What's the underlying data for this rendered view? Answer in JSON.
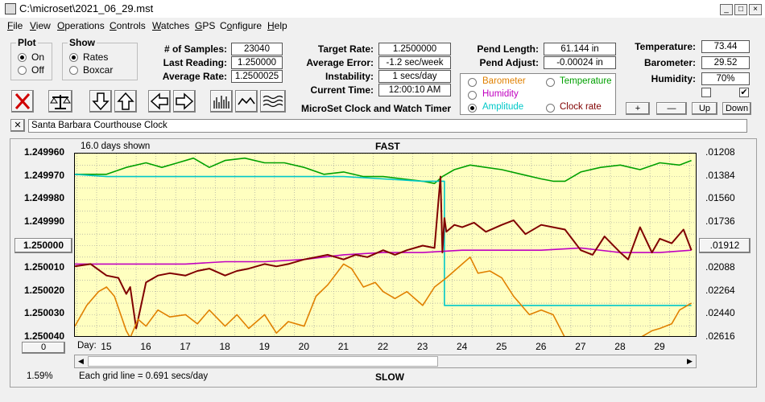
{
  "window": {
    "title": "C:\\microset\\2021_06_29.mst"
  },
  "menu": [
    "File",
    "View",
    "Operations",
    "Controls",
    "Watches",
    "GPS",
    "Configure",
    "Help"
  ],
  "menu_underline": [
    "F",
    "V",
    "O",
    "C",
    "W",
    "G",
    "o",
    "H"
  ],
  "plot_group": {
    "title": "Plot",
    "on": "On",
    "off": "Off"
  },
  "show_group": {
    "title": "Show",
    "rates": "Rates",
    "boxcar": "Boxcar"
  },
  "stats": {
    "samples_label": "# of Samples:",
    "samples": "23040",
    "last_label": "Last Reading:",
    "last": "1.250000",
    "avg_rate_label": "Average Rate:",
    "avg_rate": "1.2500025",
    "target_label": "Target Rate:",
    "target": "1.2500000",
    "avg_err_label": "Average Error:",
    "avg_err": "-1.2 sec/week",
    "instab_label": "Instability:",
    "instab": "1 secs/day",
    "time_label": "Current Time:",
    "time": "12:00:10 AM",
    "pend_len_label": "Pend Length:",
    "pend_len": "61.144 in",
    "pend_adj_label": "Pend Adjust:",
    "pend_adj": "-0.00024 in",
    "temp_label": "Temperature:",
    "temp": "73.44",
    "baro_label": "Barometer:",
    "baro": "29.52",
    "hum_label": "Humidity:",
    "hum": "70%"
  },
  "app_name": "MicroSet Clock and Watch Timer",
  "legend": {
    "barometer": "Barometer",
    "temperature": "Temperature",
    "humidity": "Humidity",
    "amplitude": "Amplitude",
    "clock_rate": "Clock rate",
    "colors": {
      "barometer": "#e08000",
      "temperature": "#00a000",
      "humidity": "#c000c0",
      "amplitude": "#00c8c8",
      "clock_rate": "#800000"
    }
  },
  "env_buttons": {
    "plus": "+",
    "minus": "—",
    "up": "Up",
    "down": "Down"
  },
  "env_checks": {
    "left": "",
    "right": "✔"
  },
  "clock_name": "Santa Barbara Courthouse Clock",
  "chart_header": {
    "days_shown": "16.0 days shown",
    "fast": "FAST",
    "slow": "SLOW",
    "grid_note": "Each grid line = 0.691 secs/day",
    "percent": "1.59%",
    "day_label": "Day:",
    "left_btn": "1.250000",
    "right_btn": ".01912",
    "bottom_btn": "0"
  },
  "chart_data": {
    "type": "line",
    "x": {
      "label": "Day:",
      "range": [
        14.2,
        29.95
      ],
      "ticks": [
        15,
        16,
        17,
        18,
        19,
        20,
        21,
        22,
        23,
        24,
        25,
        26,
        27,
        28,
        29
      ]
    },
    "y_left": {
      "ticks": [
        "1.249960",
        "1.249970",
        "1.249980",
        "1.249990",
        "1.250000",
        "1.250010",
        "1.250020",
        "1.250030",
        "1.250040"
      ],
      "range": [
        1.24996,
        1.25004
      ],
      "inverted": true
    },
    "y_right": {
      "ticks": [
        ".01208",
        ".01384",
        ".01560",
        ".01736",
        ".01912",
        ".02088",
        ".02264",
        ".02440",
        ".02616"
      ]
    },
    "grid": true,
    "series": [
      {
        "name": "Temperature",
        "color": "#00a000",
        "x": [
          14.2,
          14.6,
          15.0,
          15.5,
          16.0,
          16.4,
          16.8,
          17.2,
          17.6,
          18.0,
          18.5,
          19.0,
          19.5,
          20.0,
          20.5,
          21.0,
          21.5,
          22.0,
          22.5,
          23.0,
          23.3,
          23.5,
          23.8,
          24.2,
          24.6,
          25.0,
          25.5,
          26.0,
          26.3,
          26.6,
          27.0,
          27.5,
          28.0,
          28.5,
          29.0,
          29.5,
          29.8
        ],
        "y": [
          1.249969,
          1.249969,
          1.249969,
          1.249966,
          1.249964,
          1.249966,
          1.249964,
          1.249962,
          1.249966,
          1.249963,
          1.249962,
          1.249964,
          1.249964,
          1.249966,
          1.249969,
          1.249968,
          1.24997,
          1.24997,
          1.249971,
          1.249972,
          1.249973,
          1.24997,
          1.249967,
          1.249965,
          1.249966,
          1.249967,
          1.249969,
          1.249971,
          1.249972,
          1.249972,
          1.249968,
          1.249966,
          1.249965,
          1.249967,
          1.249964,
          1.249965,
          1.249963
        ]
      },
      {
        "name": "Amplitude",
        "color": "#00c8c8",
        "x": [
          14.2,
          15.0,
          16.0,
          17.0,
          18.0,
          19.0,
          20.0,
          21.0,
          22.0,
          23.0,
          23.3,
          23.55,
          23.55,
          24.5,
          25.5,
          26.5,
          27.5,
          28.5,
          29.5,
          29.8
        ],
        "y": [
          1.249969,
          1.24997,
          1.24997,
          1.24997,
          1.24997,
          1.24997,
          1.24997,
          1.24997,
          1.249971,
          1.249972,
          1.249972,
          1.249972,
          1.250026,
          1.250026,
          1.250026,
          1.250026,
          1.250026,
          1.250026,
          1.250026,
          1.250026
        ]
      },
      {
        "name": "Humidity",
        "color": "#c000c0",
        "x": [
          14.2,
          15.0,
          16.0,
          17.0,
          18.0,
          19.0,
          20.0,
          21.0,
          22.0,
          23.0,
          24.0,
          25.0,
          26.0,
          27.0,
          28.0,
          29.0,
          29.8
        ],
        "y": [
          1.250008,
          1.250008,
          1.250008,
          1.250008,
          1.250007,
          1.250007,
          1.250006,
          1.250004,
          1.250003,
          1.250003,
          1.250002,
          1.250002,
          1.250002,
          1.250001,
          1.250003,
          1.250003,
          1.250002
        ]
      },
      {
        "name": "Clock rate",
        "color": "#800000",
        "x": [
          14.2,
          14.6,
          15.0,
          15.3,
          15.5,
          15.6,
          15.75,
          16.0,
          16.3,
          16.6,
          17.0,
          17.3,
          17.6,
          18.0,
          18.3,
          18.6,
          19.0,
          19.3,
          19.6,
          20.0,
          20.3,
          20.6,
          21.0,
          21.3,
          21.6,
          22.0,
          22.3,
          22.6,
          23.0,
          23.3,
          23.45,
          23.5,
          23.55,
          23.6,
          23.8,
          24.0,
          24.3,
          24.6,
          25.0,
          25.3,
          25.6,
          26.0,
          26.3,
          26.6,
          27.0,
          27.3,
          27.6,
          28.0,
          28.2,
          28.5,
          28.8,
          29.0,
          29.3,
          29.6,
          29.8
        ],
        "y": [
          1.250009,
          1.250008,
          1.250013,
          1.250014,
          1.250021,
          1.250018,
          1.250036,
          1.250016,
          1.250013,
          1.250012,
          1.250013,
          1.250011,
          1.25001,
          1.250013,
          1.250011,
          1.25001,
          1.250008,
          1.250009,
          1.250008,
          1.250006,
          1.250005,
          1.250004,
          1.250006,
          1.250004,
          1.250005,
          1.250002,
          1.250004,
          1.250002,
          1.25,
          1.250001,
          1.24997,
          1.250003,
          1.249988,
          1.249994,
          1.249991,
          1.249992,
          1.24999,
          1.249994,
          1.249991,
          1.249989,
          1.249995,
          1.249991,
          1.249992,
          1.249993,
          1.250002,
          1.250004,
          1.249996,
          1.250003,
          1.250006,
          1.249992,
          1.250003,
          1.249997,
          1.249999,
          1.249993,
          1.250002
        ]
      },
      {
        "name": "Barometer",
        "color": "#e08000",
        "x": [
          14.2,
          14.5,
          14.8,
          15.0,
          15.2,
          15.5,
          15.6,
          15.8,
          16.0,
          16.3,
          16.6,
          17.0,
          17.3,
          17.6,
          18.0,
          18.3,
          18.6,
          19.0,
          19.3,
          19.6,
          20.0,
          20.3,
          20.6,
          21.0,
          21.2,
          21.5,
          21.8,
          22.0,
          22.3,
          22.6,
          23.0,
          23.3,
          23.6,
          24.0,
          24.2,
          24.4,
          24.7,
          25.0,
          25.3,
          25.5,
          25.7,
          26.0,
          26.3,
          26.6,
          27.0,
          27.5,
          28.0,
          28.5,
          28.8,
          29.0,
          29.3,
          29.5,
          29.8
        ],
        "y": [
          1.250035,
          1.250026,
          1.25002,
          1.250018,
          1.250022,
          1.250037,
          1.25004,
          1.250032,
          1.250035,
          1.250028,
          1.250031,
          1.25003,
          1.250034,
          1.250028,
          1.250035,
          1.25003,
          1.250036,
          1.25003,
          1.250038,
          1.250033,
          1.250035,
          1.250022,
          1.250017,
          1.250008,
          1.25001,
          1.250018,
          1.250016,
          1.25002,
          1.250023,
          1.25002,
          1.250026,
          1.250018,
          1.250014,
          1.250008,
          1.250005,
          1.250012,
          1.250011,
          1.250014,
          1.250022,
          1.250026,
          1.25003,
          1.250028,
          1.25003,
          1.25004,
          1.25004,
          1.25004,
          1.25004,
          1.25004,
          1.250037,
          1.250036,
          1.250034,
          1.250028,
          1.250025
        ]
      }
    ]
  }
}
